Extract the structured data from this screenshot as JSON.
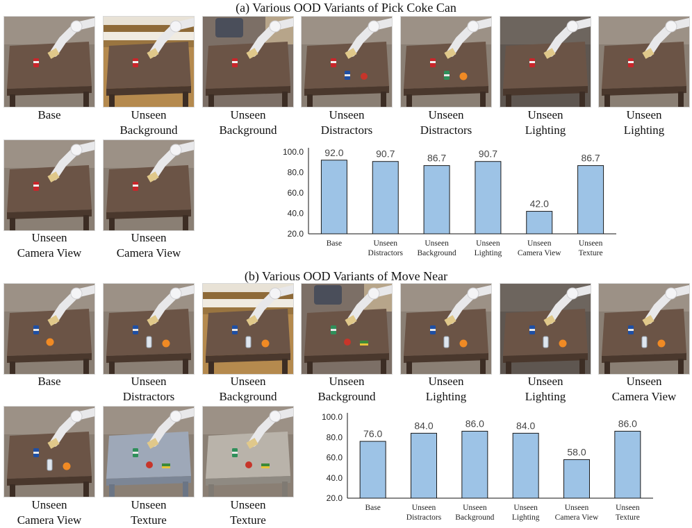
{
  "sections": [
    {
      "title": "(a) Various OOD Variants of Pick Coke Can",
      "thumbs": [
        {
          "caption": "Base",
          "table": "wood",
          "bg": "plain",
          "objects": [
            "coke"
          ]
        },
        {
          "caption": "Unseen\nBackground",
          "table": "wood",
          "bg": "stairs",
          "objects": [
            "coke"
          ]
        },
        {
          "caption": "Unseen\nBackground",
          "table": "wood",
          "bg": "sofa",
          "objects": [
            "coke"
          ]
        },
        {
          "caption": "Unseen\nDistractors",
          "table": "wood",
          "bg": "plain",
          "objects": [
            "coke",
            "pepsi",
            "apple"
          ]
        },
        {
          "caption": "Unseen\nDistractors",
          "table": "wood",
          "bg": "plain",
          "objects": [
            "coke",
            "sprite",
            "orange"
          ]
        },
        {
          "caption": "Unseen\nLighting",
          "table": "wood",
          "bg": "dark",
          "objects": [
            "coke"
          ]
        },
        {
          "caption": "Unseen\nLighting",
          "table": "wood",
          "bg": "plain",
          "objects": [
            "coke"
          ]
        },
        {
          "caption": "Unseen\nCamera View",
          "table": "wood",
          "bg": "plain",
          "objects": [
            "coke"
          ]
        },
        {
          "caption": "Unseen\nCamera View",
          "table": "wood",
          "bg": "plain",
          "objects": [
            "coke"
          ]
        }
      ]
    },
    {
      "title": "(b) Various OOD Variants of Move Near",
      "thumbs": [
        {
          "caption": "Base",
          "table": "wood",
          "bg": "plain",
          "objects": [
            "pepsi",
            "orange"
          ]
        },
        {
          "caption": "Unseen\nDistractors",
          "table": "wood",
          "bg": "plain",
          "objects": [
            "pepsi",
            "bottle",
            "orange"
          ]
        },
        {
          "caption": "Unseen\nBackground",
          "table": "wood",
          "bg": "stairs",
          "objects": [
            "pepsi",
            "bottle",
            "orange"
          ]
        },
        {
          "caption": "Unseen\nBackground",
          "table": "wood",
          "bg": "sofa",
          "objects": [
            "sprite",
            "apple",
            "sponge"
          ]
        },
        {
          "caption": "Unseen\nLighting",
          "table": "wood",
          "bg": "plain",
          "objects": [
            "pepsi",
            "bottle",
            "orange"
          ]
        },
        {
          "caption": "Unseen\nLighting",
          "table": "wood",
          "bg": "dark",
          "objects": [
            "pepsi",
            "bottle",
            "orange"
          ]
        },
        {
          "caption": "Unseen\nCamera View",
          "table": "wood",
          "bg": "plain",
          "objects": [
            "pepsi",
            "bottle",
            "orange"
          ]
        },
        {
          "caption": "Unseen\nCamera View",
          "table": "wood",
          "bg": "plain",
          "objects": [
            "pepsi",
            "bottle",
            "orange"
          ]
        },
        {
          "caption": "Unseen\nTexture",
          "table": "metal",
          "bg": "plain",
          "objects": [
            "sprite",
            "apple",
            "sponge"
          ]
        },
        {
          "caption": "Unseen\nTexture",
          "table": "marble",
          "bg": "plain",
          "objects": [
            "sprite",
            "apple",
            "sponge"
          ]
        }
      ]
    }
  ],
  "chart_data": [
    {
      "type": "bar",
      "title": "(a) Various OOD Variants of Pick Coke Can",
      "categories": [
        "Base",
        "Unseen\nDistractors",
        "Unseen\nBackground",
        "Unseen\nLighting",
        "Unseen\nCamera View",
        "Unseen\nTexture"
      ],
      "values": [
        92.0,
        90.7,
        86.7,
        90.7,
        42.0,
        86.7
      ],
      "value_labels": [
        "92.0",
        "90.7",
        "86.7",
        "90.7",
        "42.0",
        "86.7"
      ],
      "yticks": [
        "20.0",
        "40.0",
        "60.0",
        "80.0",
        "100.0"
      ],
      "ylim": [
        20,
        100
      ],
      "xlabel": "",
      "ylabel": "",
      "bar_color": "#9dc3e6"
    },
    {
      "type": "bar",
      "title": "(b) Various OOD Variants of Move Near",
      "categories": [
        "Base",
        "Unseen\nDistractors",
        "Unseen\nBackground",
        "Unseen\nLighting",
        "Unseen\nCamera View",
        "Unseen\nTexture"
      ],
      "values": [
        76.0,
        84.0,
        86.0,
        84.0,
        58.0,
        86.0
      ],
      "value_labels": [
        "76.0",
        "84.0",
        "86.0",
        "84.0",
        "58.0",
        "86.0"
      ],
      "yticks": [
        "20.0",
        "40.0",
        "60.0",
        "80.0",
        "100.0"
      ],
      "ylim": [
        20,
        100
      ],
      "xlabel": "",
      "ylabel": "",
      "bar_color": "#9dc3e6"
    }
  ]
}
